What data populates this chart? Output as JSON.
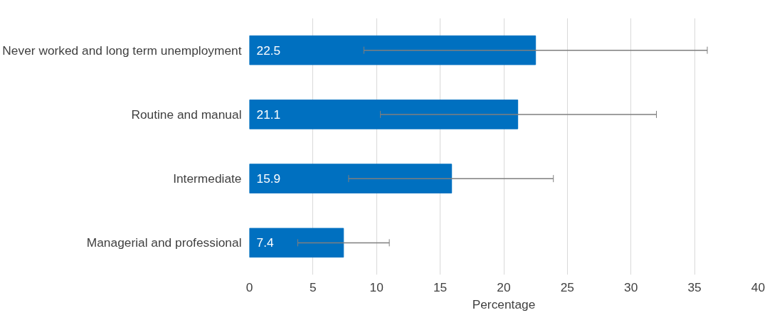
{
  "chart_data": {
    "type": "bar",
    "orientation": "horizontal",
    "xlabel": "Percentage",
    "categories": [
      "Never worked and long term unemployment",
      "Routine and manual",
      "Intermediate",
      "Managerial and professional"
    ],
    "values": [
      22.5,
      21.1,
      15.9,
      7.4
    ],
    "color": "#0070c0",
    "errors": [
      [
        9.0,
        36.0
      ],
      [
        10.3,
        32.0
      ],
      [
        7.8,
        23.9
      ],
      [
        3.8,
        11.0
      ]
    ],
    "data_labels": true,
    "xlim": [
      0,
      40
    ],
    "xticks": [
      0,
      5,
      10,
      15,
      20,
      25,
      30,
      35,
      40
    ],
    "grid": "x"
  }
}
